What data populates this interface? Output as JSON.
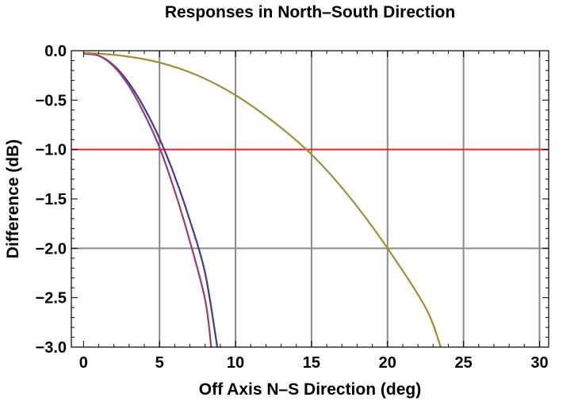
{
  "chart_data": {
    "type": "line",
    "title": "Responses in North–South Direction",
    "xlabel": "Off Axis N–S Direction (deg)",
    "ylabel": "Difference (dB)",
    "xlim": [
      -0.8,
      30.6
    ],
    "ylim": [
      -3.0,
      0.0
    ],
    "x_ticks": [
      0,
      5,
      10,
      15,
      20,
      25,
      30
    ],
    "x_tick_labels": [
      "0",
      "5",
      "10",
      "15",
      "20",
      "25",
      "30"
    ],
    "y_ticks": [
      0.0,
      -0.5,
      -1.0,
      -1.5,
      -2.0,
      -2.5,
      -3.0
    ],
    "y_tick_labels": [
      "0.0",
      "−0.5",
      "−1.0",
      "−1.5",
      "−2.0",
      "−2.5",
      "−3.0"
    ],
    "grid": true,
    "grid_lines_x": [
      5,
      10,
      15,
      20,
      25,
      30
    ],
    "grid_lines_y": [
      -2.0
    ],
    "reference_line": {
      "y": -1.0,
      "color": "#d62b1f"
    },
    "series": [
      {
        "color": "#3b3b9a",
        "x": [
          0,
          1,
          2,
          3,
          4,
          5,
          6,
          7,
          8,
          8.8
        ],
        "y": [
          -0.03,
          -0.05,
          -0.15,
          -0.33,
          -0.58,
          -0.89,
          -1.27,
          -1.72,
          -2.25,
          -3.0
        ]
      },
      {
        "color": "#9b3b72",
        "x": [
          0,
          1,
          2,
          3,
          4,
          5,
          6,
          7,
          8,
          8.4
        ],
        "y": [
          -0.03,
          -0.05,
          -0.16,
          -0.36,
          -0.64,
          -0.98,
          -1.42,
          -1.93,
          -2.52,
          -3.0
        ]
      },
      {
        "color": "#a09032",
        "x": [
          0,
          2.5,
          5,
          7.5,
          10,
          12.5,
          15,
          17.5,
          20,
          22.5,
          23.5
        ],
        "y": [
          -0.02,
          -0.05,
          -0.12,
          -0.25,
          -0.45,
          -0.72,
          -1.05,
          -1.48,
          -2.0,
          -2.6,
          -3.0
        ]
      }
    ]
  }
}
